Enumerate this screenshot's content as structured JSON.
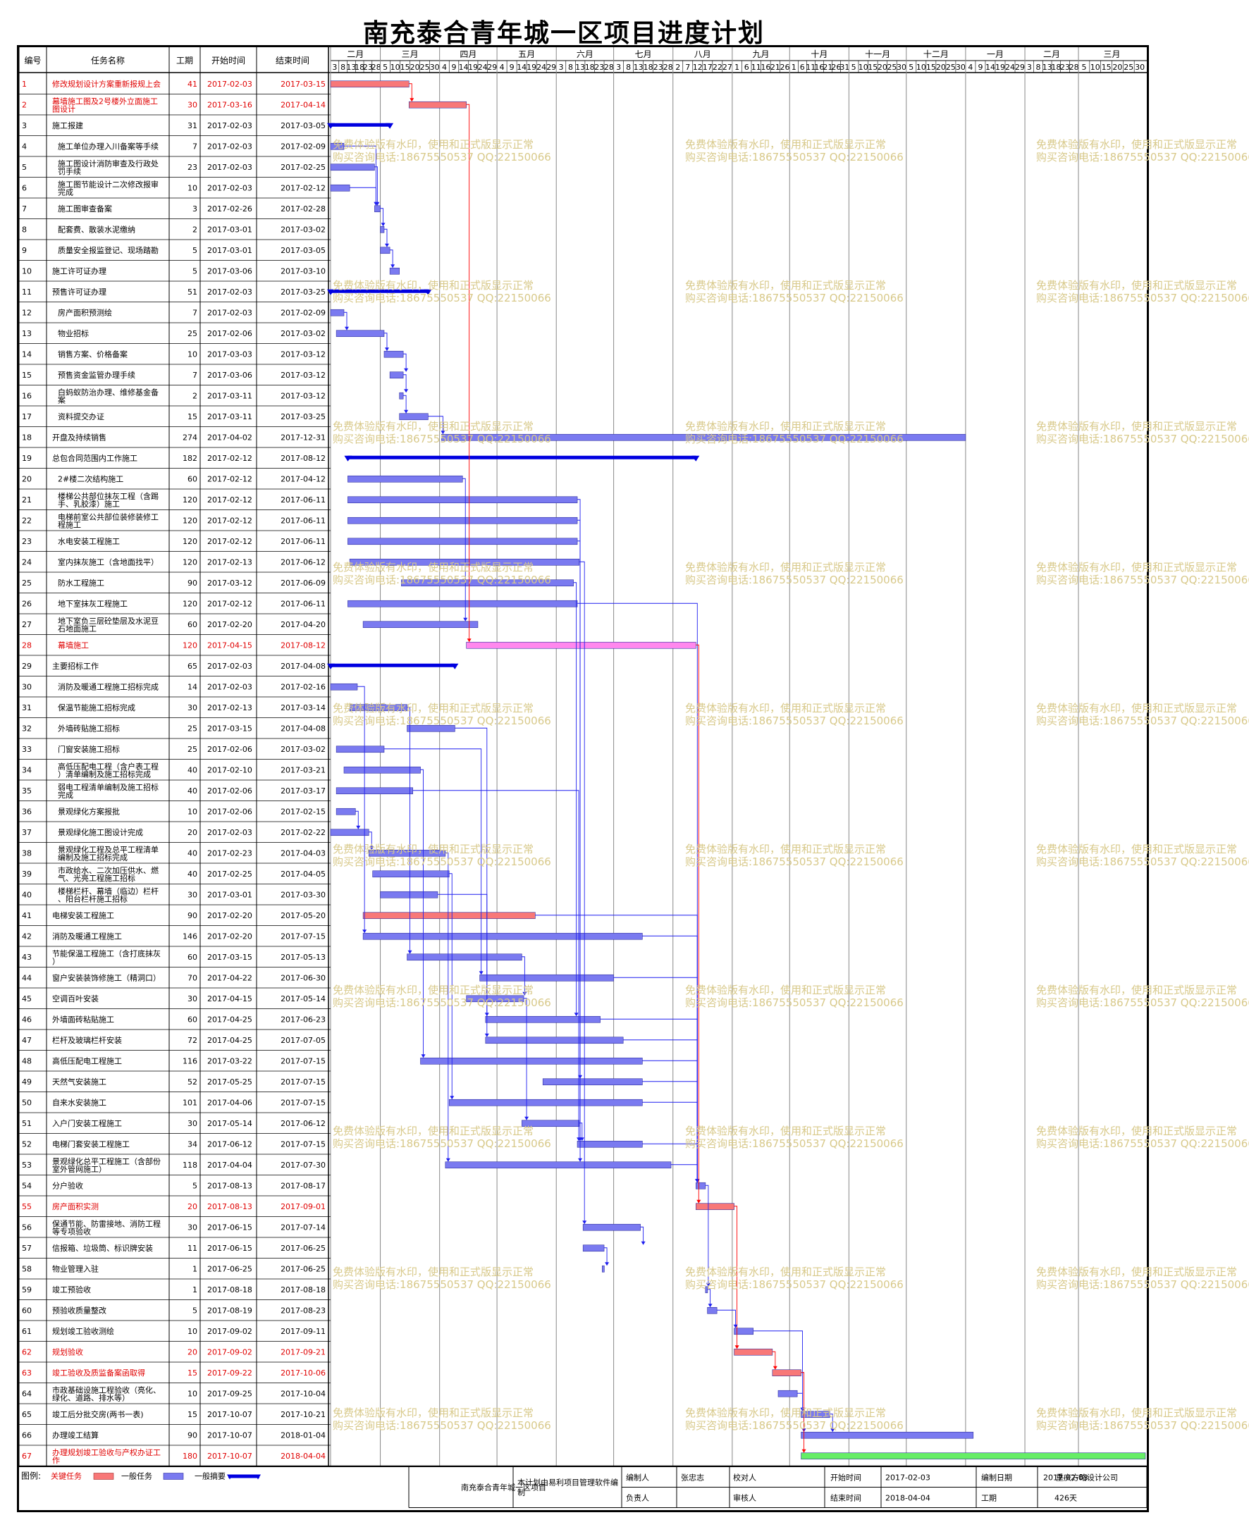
{
  "title": "南充泰合青年城一区项目进度计划",
  "header": {
    "id": "编号",
    "name": "任务名称",
    "dur": "工期",
    "start": "开始时间",
    "end": "结束时间"
  },
  "timeline": {
    "months": [
      "二月",
      "三月",
      "四月",
      "五月",
      "六月",
      "七月",
      "八月",
      "九月",
      "十月",
      "十一月",
      "十二月",
      "一月",
      "二月",
      "三月"
    ],
    "month_ticks": [
      [
        "3",
        "8",
        "13",
        "18",
        "23",
        "28"
      ],
      [
        "5",
        "10",
        "15",
        "20",
        "25",
        "30"
      ],
      [
        "4",
        "9",
        "14",
        "19",
        "24",
        "29"
      ],
      [
        "4",
        "9",
        "14",
        "19",
        "24",
        "29"
      ],
      [
        "3",
        "8",
        "13",
        "18",
        "23",
        "28"
      ],
      [
        "3",
        "8",
        "13",
        "18",
        "23",
        "28"
      ],
      [
        "2",
        "7",
        "12",
        "17",
        "22",
        "27"
      ],
      [
        "1",
        "6",
        "11",
        "16",
        "21",
        "26"
      ],
      [
        "1",
        "6",
        "11",
        "16",
        "21",
        "26",
        "31"
      ],
      [
        "5",
        "10",
        "15",
        "20",
        "25",
        "30"
      ],
      [
        "5",
        "10",
        "15",
        "20",
        "25",
        "30"
      ],
      [
        "4",
        "9",
        "14",
        "19",
        "24",
        "29"
      ],
      [
        "3",
        "8",
        "13",
        "18",
        "23",
        "28"
      ],
      [
        "5",
        "10",
        "15",
        "20",
        "25",
        "30"
      ]
    ]
  },
  "colors": {
    "critical": "#f87878",
    "normal": "#7a7af0",
    "summary": "#0000e0",
    "link": "#1f1ff0",
    "critical_link": "#ff0000",
    "pink": "#ff88ee",
    "green": "#66ee66",
    "red_text": "#e00000"
  },
  "chart_data": {
    "type": "gantt",
    "x_range": [
      "2017-02-03",
      "2018-04-04"
    ],
    "tasks": [
      {
        "id": "1",
        "name": "修改规划设计方案重新报规上会",
        "dur": "41",
        "start": "2017-02-03",
        "end": "2017-03-15",
        "kind": "critical",
        "red": true
      },
      {
        "id": "2",
        "name": "幕墙施工图及2号楼外立面施工图设计",
        "dur": "30",
        "start": "2017-03-16",
        "end": "2017-04-14",
        "kind": "critical",
        "red": true
      },
      {
        "id": "3",
        "name": "施工报建",
        "dur": "31",
        "start": "2017-02-03",
        "end": "2017-03-05",
        "kind": "summary"
      },
      {
        "id": "4",
        "name": "施工单位办理入川备案等手续",
        "dur": "7",
        "start": "2017-02-03",
        "end": "2017-02-09",
        "kind": "normal",
        "indent": true
      },
      {
        "id": "5",
        "name": "施工图设计消防审查及行政处罚手续",
        "dur": "23",
        "start": "2017-02-03",
        "end": "2017-02-25",
        "kind": "normal",
        "indent": true
      },
      {
        "id": "6",
        "name": "施工图节能设计二次修改报审完成",
        "dur": "10",
        "start": "2017-02-03",
        "end": "2017-02-12",
        "kind": "normal",
        "indent": true
      },
      {
        "id": "7",
        "name": "施工图审查备案",
        "dur": "3",
        "start": "2017-02-26",
        "end": "2017-02-28",
        "kind": "normal",
        "indent": true
      },
      {
        "id": "8",
        "name": "配套费、散装水泥缴纳",
        "dur": "2",
        "start": "2017-03-01",
        "end": "2017-03-02",
        "kind": "normal",
        "indent": true
      },
      {
        "id": "9",
        "name": "质量安全报监登记、现场踏勘",
        "dur": "5",
        "start": "2017-03-01",
        "end": "2017-03-05",
        "kind": "normal",
        "indent": true
      },
      {
        "id": "10",
        "name": "施工许可证办理",
        "dur": "5",
        "start": "2017-03-06",
        "end": "2017-03-10",
        "kind": "normal"
      },
      {
        "id": "11",
        "name": "预售许可证办理",
        "dur": "51",
        "start": "2017-02-03",
        "end": "2017-03-25",
        "kind": "summary"
      },
      {
        "id": "12",
        "name": "房产面积预测绘",
        "dur": "7",
        "start": "2017-02-03",
        "end": "2017-02-09",
        "kind": "normal",
        "indent": true
      },
      {
        "id": "13",
        "name": "物业招标",
        "dur": "25",
        "start": "2017-02-06",
        "end": "2017-03-02",
        "kind": "normal",
        "indent": true
      },
      {
        "id": "14",
        "name": "销售方案、价格备案",
        "dur": "10",
        "start": "2017-03-03",
        "end": "2017-03-12",
        "kind": "normal",
        "indent": true
      },
      {
        "id": "15",
        "name": "预售资金监管办理手续",
        "dur": "7",
        "start": "2017-03-06",
        "end": "2017-03-12",
        "kind": "normal",
        "indent": true
      },
      {
        "id": "16",
        "name": "白蚂蚁防治办理、维修基金备案",
        "dur": "2",
        "start": "2017-03-11",
        "end": "2017-03-12",
        "kind": "normal",
        "indent": true
      },
      {
        "id": "17",
        "name": "资料提交办证",
        "dur": "15",
        "start": "2017-03-11",
        "end": "2017-03-25",
        "kind": "normal",
        "indent": true
      },
      {
        "id": "18",
        "name": "开盘及持续销售",
        "dur": "274",
        "start": "2017-04-02",
        "end": "2017-12-31",
        "kind": "normal"
      },
      {
        "id": "19",
        "name": "总包合同范围内工作施工",
        "dur": "182",
        "start": "2017-02-12",
        "end": "2017-08-12",
        "kind": "summary"
      },
      {
        "id": "20",
        "name": "2#楼二次结构施工",
        "dur": "60",
        "start": "2017-02-12",
        "end": "2017-04-12",
        "kind": "normal",
        "indent": true
      },
      {
        "id": "21",
        "name": "楼梯公共部位抹灰工程（含踢手、乳胶漆）施工",
        "dur": "120",
        "start": "2017-02-12",
        "end": "2017-06-11",
        "kind": "normal",
        "indent": true
      },
      {
        "id": "22",
        "name": "电梯前室公共部位装修装修工程施工",
        "dur": "120",
        "start": "2017-02-12",
        "end": "2017-06-11",
        "kind": "normal",
        "indent": true
      },
      {
        "id": "23",
        "name": "水电安装工程施工",
        "dur": "120",
        "start": "2017-02-12",
        "end": "2017-06-11",
        "kind": "normal",
        "indent": true
      },
      {
        "id": "24",
        "name": "室内抹灰施工（含地面找平）",
        "dur": "120",
        "start": "2017-02-13",
        "end": "2017-06-12",
        "kind": "normal",
        "indent": true
      },
      {
        "id": "25",
        "name": "防水工程施工",
        "dur": "90",
        "start": "2017-03-12",
        "end": "2017-06-09",
        "kind": "normal",
        "indent": true
      },
      {
        "id": "26",
        "name": "地下室抹灰工程施工",
        "dur": "120",
        "start": "2017-02-12",
        "end": "2017-06-11",
        "kind": "normal",
        "indent": true
      },
      {
        "id": "27",
        "name": "地下室负三层砼垫层及水泥豆石地面施工",
        "dur": "60",
        "start": "2017-02-20",
        "end": "2017-04-20",
        "kind": "normal",
        "indent": true
      },
      {
        "id": "28",
        "name": "幕墙施工",
        "dur": "120",
        "start": "2017-04-15",
        "end": "2017-08-12",
        "kind": "pink",
        "red": true,
        "indent": true
      },
      {
        "id": "29",
        "name": "主要招标工作",
        "dur": "65",
        "start": "2017-02-03",
        "end": "2017-04-08",
        "kind": "summary"
      },
      {
        "id": "30",
        "name": "消防及暖通工程施工招标完成",
        "dur": "14",
        "start": "2017-02-03",
        "end": "2017-02-16",
        "kind": "normal",
        "indent": true
      },
      {
        "id": "31",
        "name": "保温节能施工招标完成",
        "dur": "30",
        "start": "2017-02-13",
        "end": "2017-03-14",
        "kind": "normal",
        "indent": true
      },
      {
        "id": "32",
        "name": "外墙砖贴施工招标",
        "dur": "25",
        "start": "2017-03-15",
        "end": "2017-04-08",
        "kind": "normal",
        "indent": true
      },
      {
        "id": "33",
        "name": "门窗安装施工招标",
        "dur": "25",
        "start": "2017-02-06",
        "end": "2017-03-02",
        "kind": "normal",
        "indent": true
      },
      {
        "id": "34",
        "name": "高低压配电工程（含户表工程）清单编制及施工招标完成",
        "dur": "40",
        "start": "2017-02-10",
        "end": "2017-03-21",
        "kind": "normal",
        "indent": true
      },
      {
        "id": "35",
        "name": "弱电工程清单编制及施工招标完成",
        "dur": "40",
        "start": "2017-02-06",
        "end": "2017-03-17",
        "kind": "normal",
        "indent": true
      },
      {
        "id": "36",
        "name": "景观绿化方案报批",
        "dur": "10",
        "start": "2017-02-06",
        "end": "2017-02-15",
        "kind": "normal",
        "indent": true
      },
      {
        "id": "37",
        "name": "景观绿化施工图设计完成",
        "dur": "20",
        "start": "2017-02-03",
        "end": "2017-02-22",
        "kind": "normal",
        "indent": true
      },
      {
        "id": "38",
        "name": "景观绿化工程及总平工程清单编制及施工招标完成",
        "dur": "40",
        "start": "2017-02-23",
        "end": "2017-04-03",
        "kind": "normal",
        "indent": true
      },
      {
        "id": "39",
        "name": "市政给水、二次加压供水、燃气、光亮工程施工招标",
        "dur": "40",
        "start": "2017-02-25",
        "end": "2017-04-05",
        "kind": "normal",
        "indent": true
      },
      {
        "id": "40",
        "name": "楼梯栏杆、幕墙（临边）栏杆、阳台栏杆施工招标",
        "dur": "30",
        "start": "2017-03-01",
        "end": "2017-03-30",
        "kind": "normal",
        "indent": true
      },
      {
        "id": "41",
        "name": "电梯安装工程施工",
        "dur": "90",
        "start": "2017-02-20",
        "end": "2017-05-20",
        "kind": "critical"
      },
      {
        "id": "42",
        "name": "消防及暖通工程施工",
        "dur": "146",
        "start": "2017-02-20",
        "end": "2017-07-15",
        "kind": "normal"
      },
      {
        "id": "43",
        "name": "节能保温工程施工（含打底抹灰）",
        "dur": "60",
        "start": "2017-03-15",
        "end": "2017-05-13",
        "kind": "normal"
      },
      {
        "id": "44",
        "name": "窗户安装装饰修施工（精洞口）",
        "dur": "70",
        "start": "2017-04-22",
        "end": "2017-06-30",
        "kind": "normal"
      },
      {
        "id": "45",
        "name": "空调百叶安装",
        "dur": "30",
        "start": "2017-04-15",
        "end": "2017-05-14",
        "kind": "normal"
      },
      {
        "id": "46",
        "name": "外墙面砖粘贴施工",
        "dur": "60",
        "start": "2017-04-25",
        "end": "2017-06-23",
        "kind": "normal"
      },
      {
        "id": "47",
        "name": "栏杆及玻璃栏杆安装",
        "dur": "72",
        "start": "2017-04-25",
        "end": "2017-07-05",
        "kind": "normal"
      },
      {
        "id": "48",
        "name": "高低压配电工程施工",
        "dur": "116",
        "start": "2017-03-22",
        "end": "2017-07-15",
        "kind": "normal"
      },
      {
        "id": "49",
        "name": "天然气安装施工",
        "dur": "52",
        "start": "2017-05-25",
        "end": "2017-07-15",
        "kind": "normal"
      },
      {
        "id": "50",
        "name": "自来水安装施工",
        "dur": "101",
        "start": "2017-04-06",
        "end": "2017-07-15",
        "kind": "normal"
      },
      {
        "id": "51",
        "name": "入户门安装工程施工",
        "dur": "30",
        "start": "2017-05-14",
        "end": "2017-06-12",
        "kind": "normal"
      },
      {
        "id": "52",
        "name": "电梯门套安装工程施工",
        "dur": "34",
        "start": "2017-06-12",
        "end": "2017-07-15",
        "kind": "normal"
      },
      {
        "id": "53",
        "name": "景观绿化总平工程施工（含部份室外管网施工）",
        "dur": "118",
        "start": "2017-04-04",
        "end": "2017-07-30",
        "kind": "normal"
      },
      {
        "id": "54",
        "name": "分户验收",
        "dur": "5",
        "start": "2017-08-13",
        "end": "2017-08-17",
        "kind": "normal"
      },
      {
        "id": "55",
        "name": "房产面积实测",
        "dur": "20",
        "start": "2017-08-13",
        "end": "2017-09-01",
        "kind": "critical",
        "red": true
      },
      {
        "id": "56",
        "name": "保通节能、防雷接地、消防工程等专项验收",
        "dur": "30",
        "start": "2017-06-15",
        "end": "2017-07-14",
        "kind": "normal"
      },
      {
        "id": "57",
        "name": "信报箱、垃圾筒、标识牌安装",
        "dur": "11",
        "start": "2017-06-15",
        "end": "2017-06-25",
        "kind": "normal"
      },
      {
        "id": "58",
        "name": "物业管理入驻",
        "dur": "1",
        "start": "2017-06-25",
        "end": "2017-06-25",
        "kind": "normal"
      },
      {
        "id": "59",
        "name": "竣工预验收",
        "dur": "1",
        "start": "2017-08-18",
        "end": "2017-08-18",
        "kind": "normal"
      },
      {
        "id": "60",
        "name": "预验收质量整改",
        "dur": "5",
        "start": "2017-08-19",
        "end": "2017-08-23",
        "kind": "normal"
      },
      {
        "id": "61",
        "name": "规划竣工验收测绘",
        "dur": "10",
        "start": "2017-09-02",
        "end": "2017-09-11",
        "kind": "normal"
      },
      {
        "id": "62",
        "name": "规划验收",
        "dur": "20",
        "start": "2017-09-02",
        "end": "2017-09-21",
        "kind": "critical",
        "red": true
      },
      {
        "id": "63",
        "name": "竣工验收及质监备案函取得",
        "dur": "15",
        "start": "2017-09-22",
        "end": "2017-10-06",
        "kind": "critical",
        "red": true
      },
      {
        "id": "64",
        "name": "市政基础设施工程验收（亮化、绿化、道路、排水等）",
        "dur": "10",
        "start": "2017-09-25",
        "end": "2017-10-04",
        "kind": "normal"
      },
      {
        "id": "65",
        "name": "竣工后分批交房(两书一表)",
        "dur": "15",
        "start": "2017-10-07",
        "end": "2017-10-21",
        "kind": "normal"
      },
      {
        "id": "66",
        "name": "办理竣工结算",
        "dur": "90",
        "start": "2017-10-07",
        "end": "2018-01-04",
        "kind": "normal"
      },
      {
        "id": "67",
        "name": "办理规划竣工验收与产权办证工作",
        "dur": "180",
        "start": "2017-10-07",
        "end": "2018-04-04",
        "kind": "green",
        "red": true
      }
    ]
  },
  "legend": {
    "label": "图例:",
    "critical": "关键任务",
    "normal": "一般任务",
    "summary": "一般摘要"
  },
  "footer": {
    "project": "南充泰合青年城一区项目",
    "note": "本计划由易利项目管理软件编制",
    "compiler_label": "编制人",
    "compiler": "张忠志",
    "checker_label": "校对人",
    "checker": "",
    "owner_label": "负责人",
    "owner": "",
    "reviewer_label": "审核人",
    "reviewer": "",
    "start_label": "开始时间",
    "start": "2017-02-03",
    "end_label": "结束时间",
    "end": "2018-04-04",
    "date_label": "编制日期",
    "date": "2017-02-03",
    "dur_label": "工期",
    "dur": "426天",
    "company": "重庆方略设计公司"
  },
  "watermark": {
    "line1": "免费体验版有水印，使用和正式版显示正常",
    "line2": "购买咨询电话:18675550537 QQ:22150066"
  }
}
